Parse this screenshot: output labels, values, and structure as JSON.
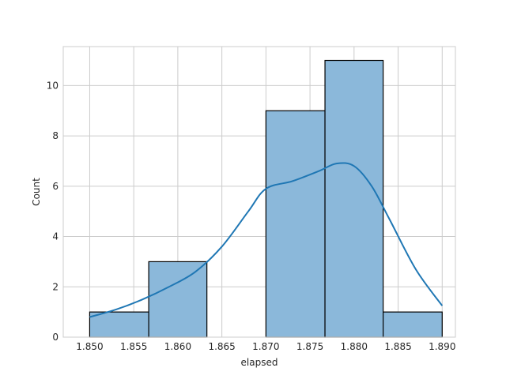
{
  "chart_data": {
    "type": "bar",
    "subtype": "histogram-with-kde",
    "xlabel": "elapsed",
    "ylabel": "Count",
    "xlim": [
      1.847,
      1.8915
    ],
    "ylim": [
      0,
      11.55
    ],
    "xticks": [
      1.85,
      1.855,
      1.86,
      1.865,
      1.87,
      1.875,
      1.88,
      1.885,
      1.89
    ],
    "xtick_labels": [
      "1.850",
      "1.855",
      "1.860",
      "1.865",
      "1.870",
      "1.875",
      "1.880",
      "1.885",
      "1.890"
    ],
    "yticks": [
      0,
      2,
      4,
      6,
      8,
      10
    ],
    "ytick_labels": [
      "0",
      "2",
      "4",
      "6",
      "8",
      "10"
    ],
    "grid": true,
    "bins": [
      {
        "start": 1.85,
        "end": 1.8567,
        "count": 1
      },
      {
        "start": 1.8567,
        "end": 1.8633,
        "count": 3
      },
      {
        "start": 1.8633,
        "end": 1.87,
        "count": 0
      },
      {
        "start": 1.87,
        "end": 1.8767,
        "count": 9
      },
      {
        "start": 1.8767,
        "end": 1.8833,
        "count": 11
      },
      {
        "start": 1.8833,
        "end": 1.89,
        "count": 1
      }
    ],
    "kde": {
      "x": [
        1.85,
        1.853,
        1.856,
        1.859,
        1.862,
        1.865,
        1.868,
        1.87,
        1.873,
        1.876,
        1.878,
        1.88,
        1.882,
        1.884,
        1.887,
        1.89
      ],
      "y": [
        0.8,
        1.1,
        1.5,
        2.0,
        2.6,
        3.6,
        5.0,
        5.9,
        6.2,
        6.6,
        6.9,
        6.8,
        6.0,
        4.7,
        2.7,
        1.25
      ]
    },
    "colors": {
      "bar_fill": "#8bb8da",
      "bar_edge": "#000000",
      "kde_line": "#1f77b4",
      "grid": "#cccccc",
      "frame": "#cccccc",
      "text": "#262626"
    }
  }
}
